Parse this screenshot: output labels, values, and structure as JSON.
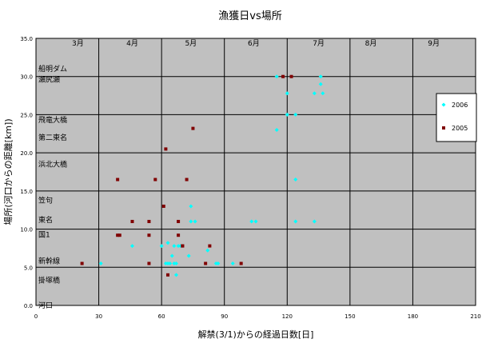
{
  "chart_data": {
    "type": "scatter",
    "title": "漁獲日vs場所",
    "xlabel": "解禁(3/1)からの経過日数[日]",
    "ylabel": "場所(河口からの距離[km])",
    "xlim": [
      0,
      210
    ],
    "ylim": [
      0,
      35
    ],
    "x_ticks": [
      "0",
      "30",
      "60",
      "90",
      "120",
      "150",
      "180",
      "210"
    ],
    "y_ticks": [
      "0.0",
      "5.0",
      "10.0",
      "15.0",
      "20.0",
      "25.0",
      "30.0",
      "35.0"
    ],
    "grid": true,
    "legend_position": "right",
    "months": [
      {
        "label": "3月",
        "x": 20
      },
      {
        "label": "4月",
        "x": 46
      },
      {
        "label": "5月",
        "x": 74
      },
      {
        "label": "6月",
        "x": 104
      },
      {
        "label": "7月",
        "x": 135
      },
      {
        "label": "8月",
        "x": 160
      },
      {
        "label": "9月",
        "x": 190
      }
    ],
    "places": [
      {
        "label": "船明ダム",
        "y": 31.0
      },
      {
        "label": "瀬尻瀬",
        "y": 29.6
      },
      {
        "label": "飛竜大橋",
        "y": 24.3
      },
      {
        "label": "第二東名",
        "y": 22.0
      },
      {
        "label": "浜北大橋",
        "y": 18.5
      },
      {
        "label": "笠句",
        "y": 13.8
      },
      {
        "label": "東名",
        "y": 11.2
      },
      {
        "label": "国1",
        "y": 9.3
      },
      {
        "label": "新幹線",
        "y": 5.8
      },
      {
        "label": "掛塚橋",
        "y": 3.3
      },
      {
        "label": "河口",
        "y": 0.0
      }
    ],
    "series": [
      {
        "name": "2006",
        "color": "#00ffff",
        "marker": "diamond",
        "points": [
          [
            31,
            5.5
          ],
          [
            46,
            7.8
          ],
          [
            60,
            7.8
          ],
          [
            62,
            5.5
          ],
          [
            63,
            8.2
          ],
          [
            63,
            5.5
          ],
          [
            64,
            5.5
          ],
          [
            65,
            6.5
          ],
          [
            66,
            5.5
          ],
          [
            66,
            7.8
          ],
          [
            67,
            4.0
          ],
          [
            67,
            5.5
          ],
          [
            68,
            7.8
          ],
          [
            69,
            7.8
          ],
          [
            73,
            6.5
          ],
          [
            74,
            13.0
          ],
          [
            74,
            11.0
          ],
          [
            76,
            11.0
          ],
          [
            82,
            7.2
          ],
          [
            86,
            5.5
          ],
          [
            87,
            5.5
          ],
          [
            94,
            5.5
          ],
          [
            103,
            11.0
          ],
          [
            105,
            11.0
          ],
          [
            115,
            23.0
          ],
          [
            115,
            30.0
          ],
          [
            120,
            27.8
          ],
          [
            120,
            25.0
          ],
          [
            124,
            25.0
          ],
          [
            124,
            16.5
          ],
          [
            124,
            11.0
          ],
          [
            133,
            11.0
          ],
          [
            133,
            27.8
          ],
          [
            136,
            30.0
          ],
          [
            136,
            29.0
          ],
          [
            137,
            27.8
          ]
        ]
      },
      {
        "name": "2005",
        "color": "#800000",
        "marker": "square",
        "points": [
          [
            22,
            5.5
          ],
          [
            39,
            16.5
          ],
          [
            39,
            9.2
          ],
          [
            40,
            9.2
          ],
          [
            46,
            11.0
          ],
          [
            54,
            11.0
          ],
          [
            54,
            9.2
          ],
          [
            54,
            5.5
          ],
          [
            57,
            16.5
          ],
          [
            61,
            13.0
          ],
          [
            62,
            20.5
          ],
          [
            63,
            4.0
          ],
          [
            68,
            11.0
          ],
          [
            68,
            9.2
          ],
          [
            70,
            7.8
          ],
          [
            70,
            7.8
          ],
          [
            72,
            16.5
          ],
          [
            75,
            23.2
          ],
          [
            81,
            5.5
          ],
          [
            83,
            7.8
          ],
          [
            98,
            5.5
          ],
          [
            118,
            30.0
          ],
          [
            122,
            30.0
          ]
        ]
      }
    ]
  }
}
